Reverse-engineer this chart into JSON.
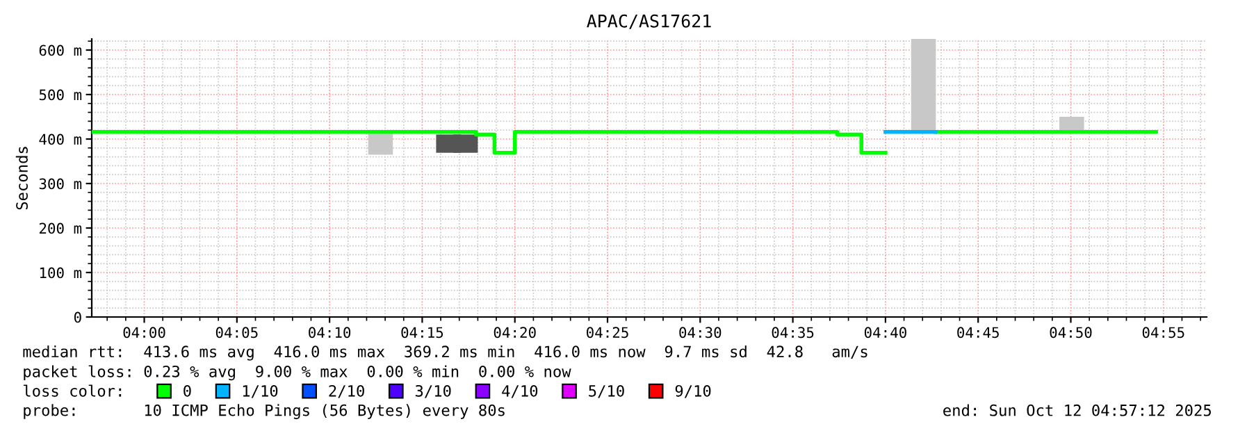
{
  "chart_data": {
    "type": "line",
    "title": "APAC/AS17621",
    "ylabel": "Seconds",
    "xlim": [
      "2025-10-12T03:57:10",
      "2025-10-12T04:57:20"
    ],
    "xticks": [
      {
        "value": "2025-10-12T04:00",
        "label": "04:00"
      },
      {
        "value": "2025-10-12T04:05",
        "label": "04:05"
      },
      {
        "value": "2025-10-12T04:10",
        "label": "04:10"
      },
      {
        "value": "2025-10-12T04:15",
        "label": "04:15"
      },
      {
        "value": "2025-10-12T04:20",
        "label": "04:20"
      },
      {
        "value": "2025-10-12T04:25",
        "label": "04:25"
      },
      {
        "value": "2025-10-12T04:30",
        "label": "04:30"
      },
      {
        "value": "2025-10-12T04:35",
        "label": "04:35"
      },
      {
        "value": "2025-10-12T04:40",
        "label": "04:40"
      },
      {
        "value": "2025-10-12T04:45",
        "label": "04:45"
      },
      {
        "value": "2025-10-12T04:50",
        "label": "04:50"
      },
      {
        "value": "2025-10-12T04:55",
        "label": "04:55"
      }
    ],
    "ylim": [
      0,
      625
    ],
    "yticks": [
      0,
      {
        "value": 100,
        "label": "100 m"
      },
      {
        "value": 200,
        "label": "200 m"
      },
      {
        "value": 300,
        "label": "300 m"
      },
      {
        "value": 400,
        "label": "400 m"
      },
      {
        "value": 500,
        "label": "500 m"
      },
      {
        "value": 600,
        "label": "600 m"
      }
    ],
    "grid": true,
    "legend": "bottom",
    "legend_title": "loss color:",
    "series": [
      {
        "type": "bar",
        "x": [
          "2025-10-12T04:12:45",
          "2025-10-12T04:16:25",
          "2025-10-12T04:17:20",
          "2025-10-12T04:42:03",
          "2025-10-12T04:50:03"
        ],
        "base": [
          365,
          369,
          369,
          416,
          416
        ],
        "values": [
          51,
          41,
          41,
          209,
          34
        ],
        "colors": [
          "#c8c8c8",
          "#555555",
          "#555555",
          "#c8c8c8",
          "#c8c8c8"
        ]
      },
      {
        "name": "0",
        "color": "#00ff00",
        "x": [
          "2025-10-12T03:57:10",
          "2025-10-12T04:17:54",
          "2025-10-12T04:17:54",
          "2025-10-12T04:18:54",
          "2025-10-12T04:18:54",
          "2025-10-12T04:20:00",
          "2025-10-12T04:20:00",
          "2025-10-12T04:37:24",
          "2025-10-12T04:37:24",
          "2025-10-12T04:38:42",
          "2025-10-12T04:38:42",
          "2025-10-12T04:40:00",
          "2025-10-12T04:41:00",
          "2025-10-12T04:42:42",
          "2025-10-12T04:54:36"
        ],
        "values": [
          416,
          416,
          410,
          410,
          369,
          369,
          416,
          416,
          410,
          410,
          369,
          369,
          null,
          416,
          416
        ]
      },
      {
        "name": "1/10",
        "color": "#00b4ff",
        "x": [
          "2025-10-12T04:40:00",
          "2025-10-12T04:42:42"
        ],
        "values": [
          416,
          416
        ]
      },
      {
        "name": "2/10",
        "color": "#0050ff"
      },
      {
        "name": "3/10",
        "color": "#5000ff"
      },
      {
        "name": "4/10",
        "color": "#8c00ff"
      },
      {
        "name": "5/10",
        "color": "#e100ff"
      },
      {
        "name": "9/10",
        "color": "#ff0000"
      }
    ],
    "annotations": [
      "median rtt:  413.6 ms avg  416.0 ms max  369.2 ms min  416.0 ms now  9.7 ms sd  42.8   am/s",
      "packet loss: 0.23 % avg  9.00 % max  0.00 % min  0.00 % now",
      "probe:       10 ICMP Echo Pings (56 Bytes) every 80s",
      "end: Sun Oct 12 04:57:12 2025"
    ]
  }
}
